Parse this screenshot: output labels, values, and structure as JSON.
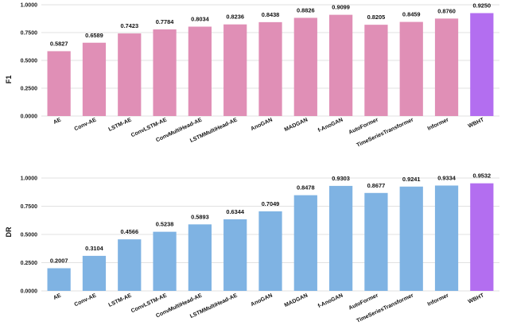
{
  "chart_data": [
    {
      "type": "bar",
      "ylabel": "F1",
      "xlabel": "",
      "title": "",
      "ylim": [
        0,
        1
      ],
      "yticks": [
        "0.0000",
        "0.2500",
        "0.5000",
        "0.7500",
        "1.0000"
      ],
      "grid": true,
      "categories": [
        "AE",
        "Conv-AE",
        "LSTM-AE",
        "ConvLSTM-AE",
        "ConvMultiHead-AE",
        "LSTMMultiHead-AE",
        "AnoGAN",
        "MADGAN",
        "f-AnoGAN",
        "AutoFormer",
        "TimeSeriesTransformer",
        "Informer",
        "WBHT"
      ],
      "values": [
        0.5827,
        0.6589,
        0.7423,
        0.7784,
        0.8034,
        0.8236,
        0.8438,
        0.8826,
        0.9099,
        0.8205,
        0.8459,
        0.876,
        0.925
      ],
      "value_labels": [
        "0.5827",
        "0.6589",
        "0.7423",
        "0.7784",
        "0.8034",
        "0.8236",
        "0.8438",
        "0.8826",
        "0.9099",
        "0.8205",
        "0.8459",
        "0.8760",
        "0.9250"
      ],
      "bar_color": "#e08fb6",
      "highlight_color": "#b36ef0",
      "highlight_index": 12
    },
    {
      "type": "bar",
      "ylabel": "DR",
      "xlabel": "",
      "title": "",
      "ylim": [
        0,
        1
      ],
      "yticks": [
        "0.0000",
        "0.2500",
        "0.5000",
        "0.7500",
        "1.0000"
      ],
      "grid": true,
      "categories": [
        "AE",
        "Conv-AE",
        "LSTM-AE",
        "ConvLSTM-AE",
        "ConvMultiHead-AE",
        "LSTMMultiHead-AE",
        "AnoGAN",
        "MADGAN",
        "f-AnoGAN",
        "AutoFormer",
        "TimeSeriesTransformer",
        "Informer",
        "WBHT"
      ],
      "values": [
        0.2007,
        0.3104,
        0.4566,
        0.5238,
        0.5893,
        0.6344,
        0.7049,
        0.8478,
        0.9303,
        0.8677,
        0.9241,
        0.9334,
        0.9532
      ],
      "value_labels": [
        "0.2007",
        "0.3104",
        "0.4566",
        "0.5238",
        "0.5893",
        "0.6344",
        "0.7049",
        "0.8478",
        "0.9303",
        "0.8677",
        "0.9241",
        "0.9334",
        "0.9532"
      ],
      "bar_color": "#7fb3e3",
      "highlight_color": "#b36ef0",
      "highlight_index": 12
    }
  ]
}
